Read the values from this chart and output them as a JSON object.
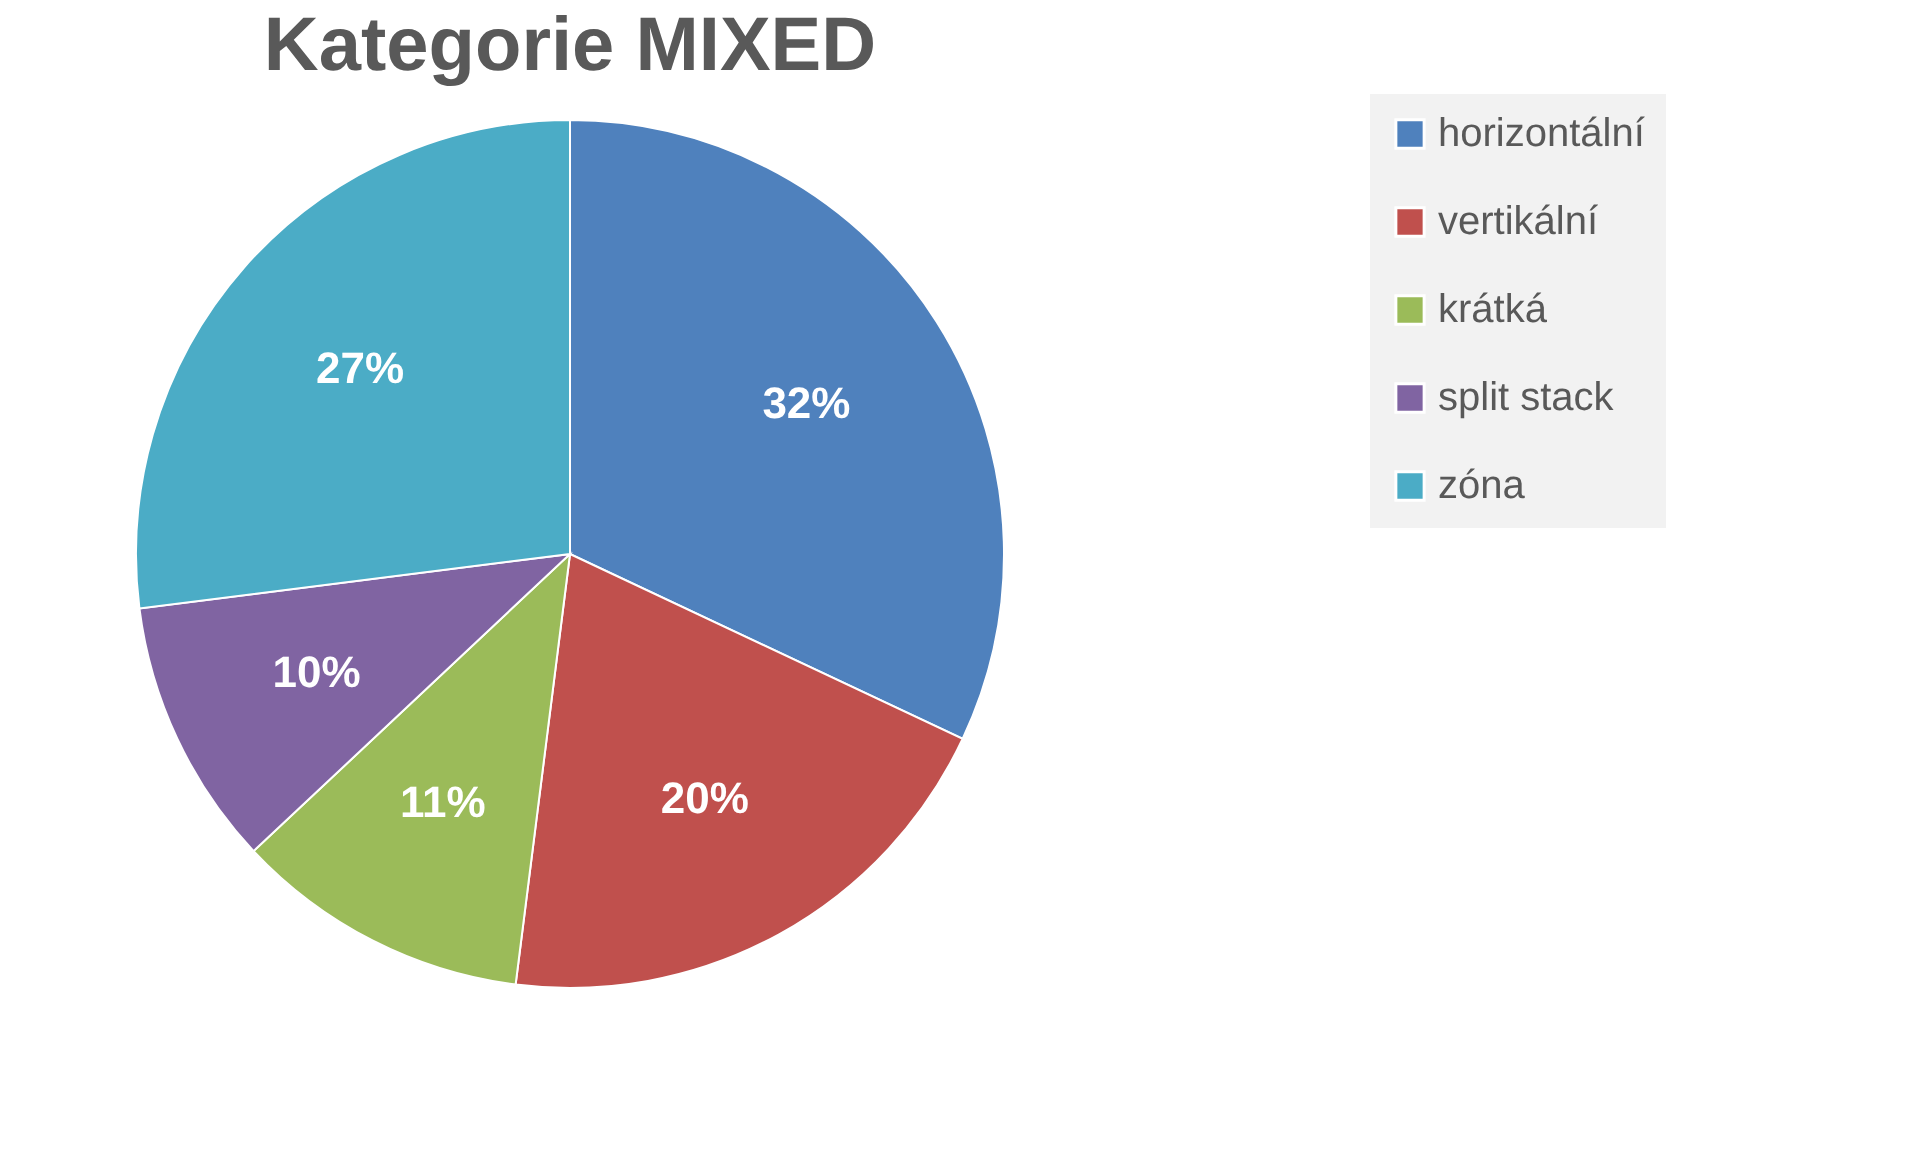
{
  "chart_data": {
    "type": "pie",
    "title": "Kategorie MIXED",
    "categories": [
      "horizontální",
      "vertikální",
      "krátká",
      "split stack",
      "zóna"
    ],
    "values": [
      32,
      20,
      11,
      10,
      27
    ],
    "colors": [
      "#4f81bd",
      "#c0504d",
      "#9bbb59",
      "#8064a2",
      "#4bacc6"
    ],
    "value_labels": [
      "32%",
      "20%",
      "11%",
      "10%",
      "27%"
    ],
    "legend": "right"
  }
}
